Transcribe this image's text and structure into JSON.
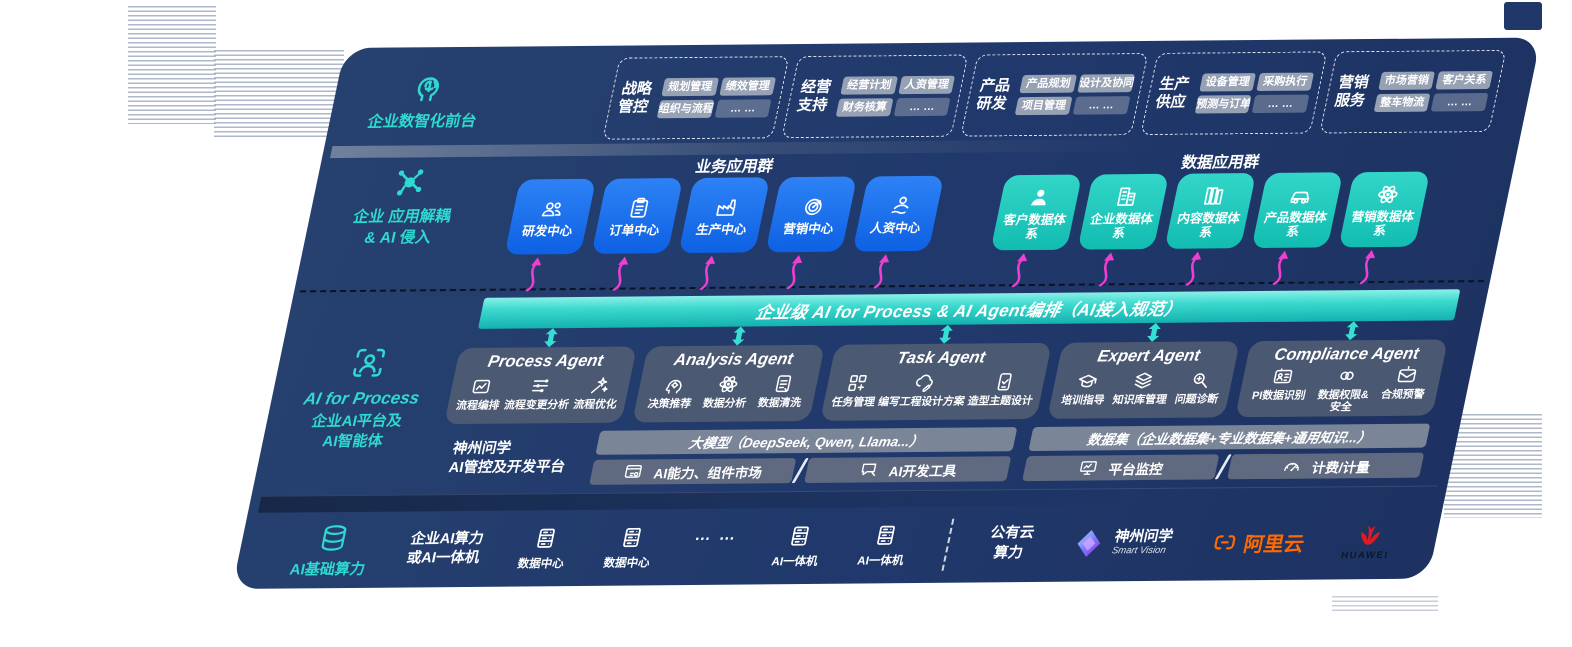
{
  "colors": {
    "navy": "#20386B",
    "teal": "#2FD9CF",
    "blue": "#1673E8",
    "magenta": "#ED3FD0",
    "gray_chip": "#A4ADBD",
    "orange": "#FF6A00",
    "huawei_red": "#E21A22"
  },
  "front_office": {
    "icon": "brain-icon",
    "label": "企业数智化前台",
    "groups": [
      {
        "title": "战略管控",
        "chips": [
          "规划管理",
          "绩效管理",
          "组织与流程",
          "… …"
        ]
      },
      {
        "title": "经营支持",
        "chips": [
          "经营计划",
          "人资管理",
          "财务核算",
          "… …"
        ]
      },
      {
        "title": "产品研发",
        "chips": [
          "产品规划",
          "设计及协同",
          "项目管理",
          "… …"
        ]
      },
      {
        "title": "生产供应",
        "chips": [
          "设备管理",
          "采购执行",
          "预测与订单",
          "… …"
        ]
      },
      {
        "title": "营销服务",
        "chips": [
          "市场营销",
          "客户关系",
          "整车物流",
          "… …"
        ]
      }
    ]
  },
  "app_layer": {
    "icon": "molecule-icon",
    "label_line1": "企业 应用解耦",
    "label_line2": "& AI 侵入",
    "business": {
      "title": "业务应用群",
      "tiles": [
        {
          "label": "研发中心",
          "icon": "team-icon"
        },
        {
          "label": "订单中心",
          "icon": "clipboard-icon"
        },
        {
          "label": "生产中心",
          "icon": "factory-icon"
        },
        {
          "label": "营销中心",
          "icon": "target-icon"
        },
        {
          "label": "人资中心",
          "icon": "hr-person-icon"
        }
      ]
    },
    "data": {
      "title": "数据应用群",
      "tiles": [
        {
          "label": "客户数据体系",
          "icon": "person-icon"
        },
        {
          "label": "企业数据体系",
          "icon": "building-icon"
        },
        {
          "label": "内容数据体系",
          "icon": "books-icon"
        },
        {
          "label": "产品数据体系",
          "icon": "car-icon"
        },
        {
          "label": "营销数据体系",
          "icon": "atom-icon"
        }
      ]
    }
  },
  "band": {
    "title": "企业级 AI for Process & AI Agent编排（AI接入规范）"
  },
  "ai_platform": {
    "icon": "scan-person-icon",
    "label_line1": "AI for Process",
    "label_line2": "企业AI平台及",
    "label_line3": "AI智能体",
    "agents": [
      {
        "name": "Process Agent",
        "features": [
          {
            "label": "流程编排",
            "icon": "chart-box-icon"
          },
          {
            "label": "流程变更分析",
            "icon": "flow-icon"
          },
          {
            "label": "流程优化",
            "icon": "spark-icon"
          }
        ]
      },
      {
        "name": "Analysis Agent",
        "features": [
          {
            "label": "决策推荐",
            "icon": "head-gear-icon"
          },
          {
            "label": "数据分析",
            "icon": "atom-icon"
          },
          {
            "label": "数据清洗",
            "icon": "doc-data-icon"
          }
        ]
      },
      {
        "name": "Task Agent",
        "features": [
          {
            "label": "任务管理",
            "icon": "task-grid-icon"
          },
          {
            "label": "编写工程设计方案",
            "icon": "cloud-pen-icon"
          },
          {
            "label": "造型主题设计",
            "icon": "tablet-check-icon"
          }
        ]
      },
      {
        "name": "Expert Agent",
        "features": [
          {
            "label": "培训指导",
            "icon": "grad-cap-icon"
          },
          {
            "label": "知识库管理",
            "icon": "layers-icon"
          },
          {
            "label": "问题诊断",
            "icon": "diagnose-icon"
          }
        ]
      },
      {
        "name": "Compliance Agent",
        "features": [
          {
            "label": "PI数据识别",
            "icon": "id-card-icon"
          },
          {
            "label": "数据权限&\n安全",
            "icon": "link-rings-icon"
          },
          {
            "label": "合规预警",
            "icon": "mail-alert-icon"
          }
        ]
      }
    ]
  },
  "dev_platform": {
    "label_line1": "神州问学",
    "label_line2": "AI管控及开发平台",
    "model_bar": "大模型（DeepSeek, Qwen, Llama...）",
    "model_cells": [
      {
        "label": "AI能力、组件市场",
        "icon": "window-gear-icon"
      },
      {
        "label": "AI开发工具",
        "icon": "chat-tool-icon"
      }
    ],
    "data_bar": "数据集（企业数据集+专业数据集+通用知识...）",
    "data_cells": [
      {
        "label": "平台监控",
        "icon": "monitor-icon"
      },
      {
        "label": "计费/计量",
        "icon": "gauge-icon"
      }
    ]
  },
  "compute": {
    "icon": "database-icon",
    "label": "AI基础算力",
    "onprem_line1": "企业AI算力",
    "onprem_line2": "或AI一体机",
    "nodes": [
      {
        "label": "数据中心",
        "icon": "server-icon"
      },
      {
        "label": "数据中心",
        "icon": "server-icon"
      }
    ],
    "dots": "… …",
    "appliances": [
      {
        "label": "AI一体机",
        "icon": "server-icon"
      },
      {
        "label": "AI一体机",
        "icon": "server-icon"
      }
    ],
    "cloud_line1": "公有云",
    "cloud_line2": "算力",
    "vendors": {
      "smartvision": {
        "icon": "smartvision-logo",
        "name": "神州问学",
        "sub": "Smart Vision"
      },
      "aliyun": {
        "icon": "aliyun-logo",
        "name": "阿里云"
      },
      "huawei": {
        "icon": "huawei-logo",
        "name": "HUAWEI"
      }
    }
  }
}
